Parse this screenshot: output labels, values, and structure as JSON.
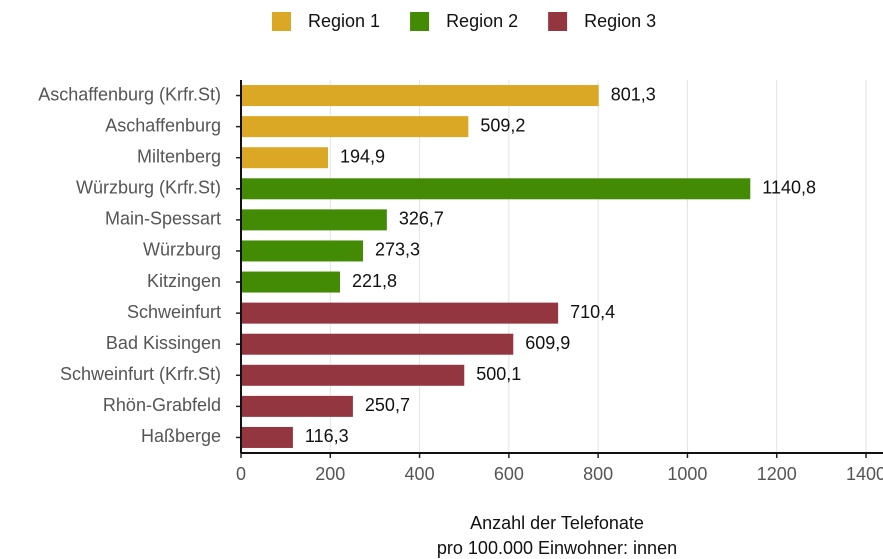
{
  "chart_data": {
    "type": "barh",
    "categories": [
      "Aschaffenburg (Krfr.St)",
      "Aschaffenburg",
      "Miltenberg",
      "Würzburg (Krfr.St)",
      "Main-Spessart",
      "Würzburg",
      "Kitzingen",
      "Schweinfurt",
      "Bad Kissingen",
      "Schweinfurt (Krfr.St)",
      "Rhön-Grabfeld",
      "Haßberge"
    ],
    "series": [
      {
        "name": "Region 1",
        "color": "#dba826",
        "values": [
          801.3,
          509.2,
          194.9,
          null,
          null,
          null,
          null,
          null,
          null,
          null,
          null,
          null
        ],
        "value_labels": [
          "801,3",
          "509,2",
          "194,9",
          null,
          null,
          null,
          null,
          null,
          null,
          null,
          null,
          null
        ]
      },
      {
        "name": "Region 2",
        "color": "#438b05",
        "values": [
          null,
          null,
          null,
          1140.8,
          326.7,
          273.3,
          221.8,
          null,
          null,
          null,
          null,
          null
        ],
        "value_labels": [
          null,
          null,
          null,
          "1140,8",
          "326,7",
          "273,3",
          "221,8",
          null,
          null,
          null,
          null,
          null
        ]
      },
      {
        "name": "Region 3",
        "color": "#94363f",
        "values": [
          null,
          null,
          null,
          null,
          null,
          null,
          null,
          710.4,
          609.9,
          500.1,
          250.7,
          116.3
        ],
        "value_labels": [
          null,
          null,
          null,
          null,
          null,
          null,
          null,
          "710,4",
          "609,9",
          "500,1",
          "250,7",
          "116,3"
        ]
      }
    ],
    "xlabel": [
      "Anzahl der Telefonate",
      "pro 100.000 Einwohner: innen"
    ],
    "xlim": [
      0,
      1400
    ],
    "xticks": [
      0,
      200,
      400,
      600,
      800,
      1000,
      1200,
      1400
    ],
    "grid": true,
    "legend": "top"
  }
}
